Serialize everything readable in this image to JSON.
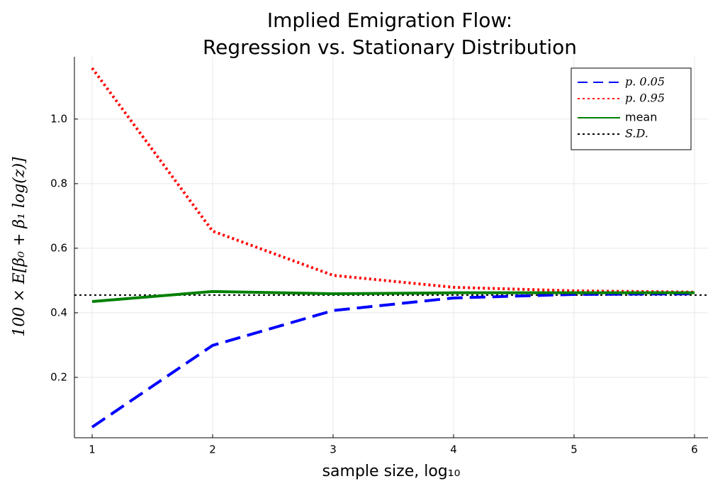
{
  "chart_data": {
    "type": "line",
    "title": [
      "Implied Emigration Flow:",
      "Regression vs. Stationary Distribution"
    ],
    "x_label": "sample size, log₁₀",
    "y_label": "100 × E[β₀ + β₁ log(z)]",
    "x": [
      1,
      2,
      3,
      4,
      5,
      6
    ],
    "series": [
      {
        "name": "p.  0.05",
        "color": "#0000ff",
        "dash": "dashed",
        "values": [
          0.046,
          0.299,
          0.407,
          0.446,
          0.457,
          0.459
        ]
      },
      {
        "name": "p.  0.95",
        "color": "#ff0000",
        "dash": "dotted",
        "values": [
          1.158,
          0.653,
          0.516,
          0.479,
          0.468,
          0.464
        ]
      },
      {
        "name": "mean",
        "color": "#008000",
        "dash": "solid",
        "values": [
          0.435,
          0.466,
          0.459,
          0.462,
          0.462,
          0.462
        ]
      }
    ],
    "hline": {
      "name": "S.D.",
      "color": "#000000",
      "dash": "dotted",
      "value": 0.455
    },
    "xlim": [
      0.853,
      6.112
    ],
    "ylim": [
      0.013,
      1.193
    ],
    "xticks": [
      1,
      2,
      3,
      4,
      5,
      6
    ],
    "yticks": [
      0.2,
      0.4,
      0.6,
      0.8,
      {
        "value": 1.0,
        "label": "1.0"
      }
    ],
    "grid": true,
    "legend": "top-right"
  }
}
